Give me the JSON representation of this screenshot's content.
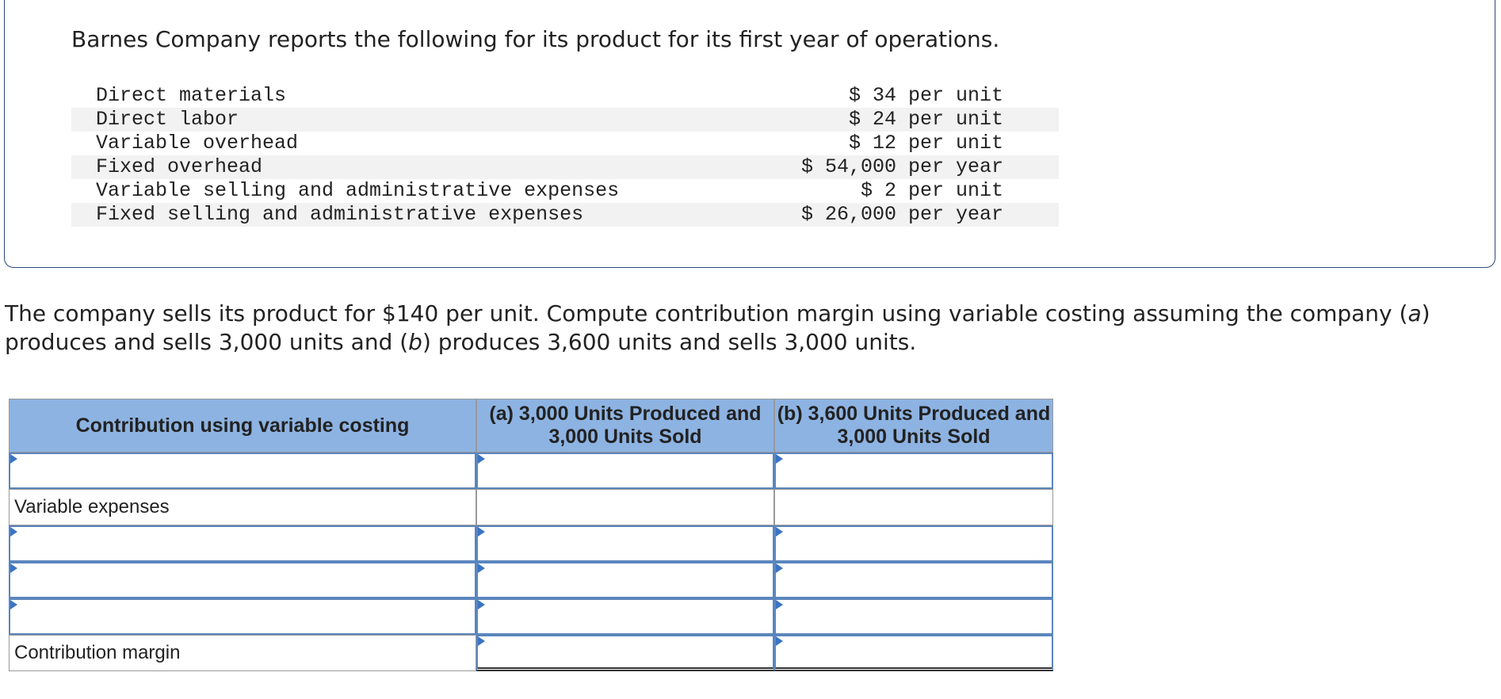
{
  "header": {
    "text": "Barnes Company reports the following for its product for its first year of operations."
  },
  "items": [
    {
      "label": "Direct materials",
      "value": "$ 34 per unit"
    },
    {
      "label": "Direct labor",
      "value": "$ 24 per unit"
    },
    {
      "label": "Variable overhead",
      "value": "$ 12 per unit"
    },
    {
      "label": "Fixed overhead",
      "value": "$ 54,000 per year"
    },
    {
      "label": "Variable selling and administrative expenses",
      "value": "$ 2 per unit"
    },
    {
      "label": "Fixed selling and administrative expenses",
      "value": "$ 26,000 per year"
    }
  ],
  "question": [
    "The company sells its product for $140 per unit. Compute contribution margin using variable costing assuming the company (",
    "a",
    ") produces and sells 3,000 units and (",
    "b",
    ") produces 3,600 units and sells 3,000 units."
  ],
  "table": {
    "columns": [
      "Contribution using variable costing",
      "(a) 3,000 Units Produced and 3,000 Units Sold",
      "(b) 3,600 Units Produced and 3,000 Units Sold"
    ],
    "row_labels": [
      "Variable expenses",
      "Contribution margin"
    ]
  }
}
